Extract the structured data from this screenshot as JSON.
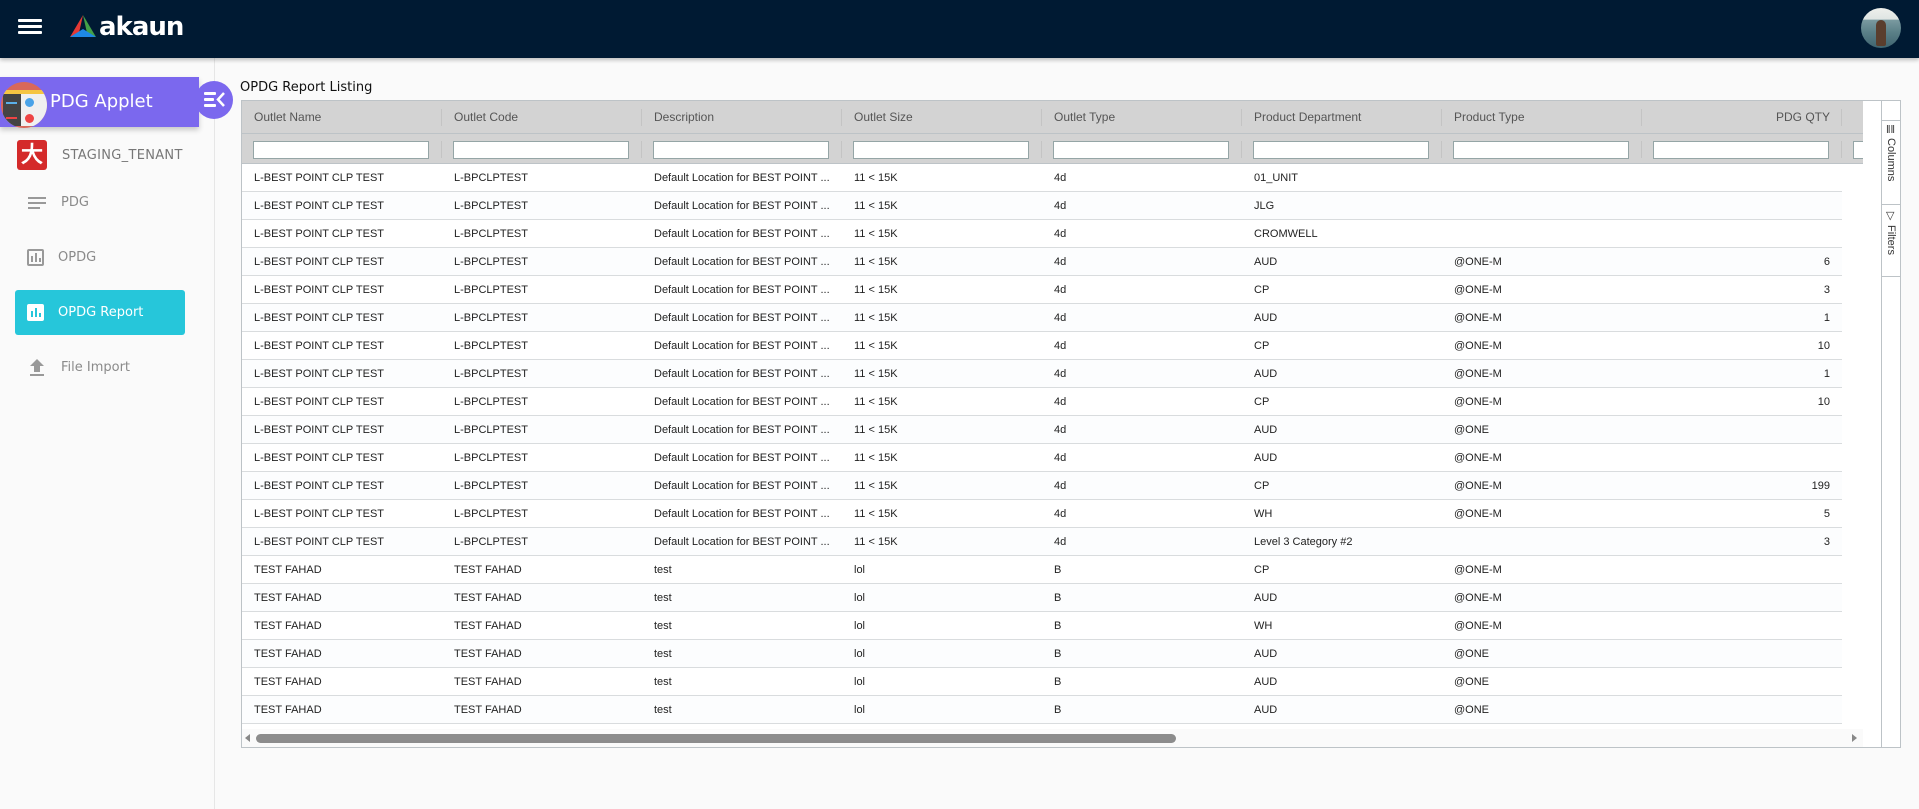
{
  "topbar": {
    "brand": "akaun"
  },
  "sidebar": {
    "applet_title": "PDG Applet",
    "tenant": "STAGING_TENANT",
    "tenant_logo_glyph": "大",
    "items": [
      {
        "label": "PDG",
        "icon": "list-icon",
        "active": false
      },
      {
        "label": "OPDG",
        "icon": "bar-chart-icon",
        "active": false
      },
      {
        "label": "OPDG Report",
        "icon": "bar-chart-icon",
        "active": true
      },
      {
        "label": "File Import",
        "icon": "upload-icon",
        "active": false
      }
    ]
  },
  "main": {
    "title": "OPDG Report Listing",
    "side_panel": {
      "columns_label": "Columns",
      "filters_label": "Filters"
    },
    "grid": {
      "columns": [
        "Outlet Name",
        "Outlet Code",
        "Description",
        "Outlet Size",
        "Outlet Type",
        "Product Department",
        "Product Type",
        "PDG QTY"
      ],
      "rows": [
        [
          "L-BEST POINT CLP TEST",
          "L-BPCLPTEST",
          "Default Location for BEST POINT ...",
          "11 < 15K",
          "4d",
          "01_UNIT",
          "",
          ""
        ],
        [
          "L-BEST POINT CLP TEST",
          "L-BPCLPTEST",
          "Default Location for BEST POINT ...",
          "11 < 15K",
          "4d",
          "JLG",
          "",
          ""
        ],
        [
          "L-BEST POINT CLP TEST",
          "L-BPCLPTEST",
          "Default Location for BEST POINT ...",
          "11 < 15K",
          "4d",
          "CROMWELL",
          "",
          ""
        ],
        [
          "L-BEST POINT CLP TEST",
          "L-BPCLPTEST",
          "Default Location for BEST POINT ...",
          "11 < 15K",
          "4d",
          "AUD",
          "@ONE-M",
          "6"
        ],
        [
          "L-BEST POINT CLP TEST",
          "L-BPCLPTEST",
          "Default Location for BEST POINT ...",
          "11 < 15K",
          "4d",
          "CP",
          "@ONE-M",
          "3"
        ],
        [
          "L-BEST POINT CLP TEST",
          "L-BPCLPTEST",
          "Default Location for BEST POINT ...",
          "11 < 15K",
          "4d",
          "AUD",
          "@ONE-M",
          "1"
        ],
        [
          "L-BEST POINT CLP TEST",
          "L-BPCLPTEST",
          "Default Location for BEST POINT ...",
          "11 < 15K",
          "4d",
          "CP",
          "@ONE-M",
          "10"
        ],
        [
          "L-BEST POINT CLP TEST",
          "L-BPCLPTEST",
          "Default Location for BEST POINT ...",
          "11 < 15K",
          "4d",
          "AUD",
          "@ONE-M",
          "1"
        ],
        [
          "L-BEST POINT CLP TEST",
          "L-BPCLPTEST",
          "Default Location for BEST POINT ...",
          "11 < 15K",
          "4d",
          "CP",
          "@ONE-M",
          "10"
        ],
        [
          "L-BEST POINT CLP TEST",
          "L-BPCLPTEST",
          "Default Location for BEST POINT ...",
          "11 < 15K",
          "4d",
          "AUD",
          "@ONE",
          ""
        ],
        [
          "L-BEST POINT CLP TEST",
          "L-BPCLPTEST",
          "Default Location for BEST POINT ...",
          "11 < 15K",
          "4d",
          "AUD",
          "@ONE-M",
          ""
        ],
        [
          "L-BEST POINT CLP TEST",
          "L-BPCLPTEST",
          "Default Location for BEST POINT ...",
          "11 < 15K",
          "4d",
          "CP",
          "@ONE-M",
          "199"
        ],
        [
          "L-BEST POINT CLP TEST",
          "L-BPCLPTEST",
          "Default Location for BEST POINT ...",
          "11 < 15K",
          "4d",
          "WH",
          "@ONE-M",
          "5"
        ],
        [
          "L-BEST POINT CLP TEST",
          "L-BPCLPTEST",
          "Default Location for BEST POINT ...",
          "11 < 15K",
          "4d",
          "Level 3 Category #2",
          "",
          "3"
        ],
        [
          "TEST FAHAD",
          "TEST FAHAD",
          "test",
          "lol",
          "B",
          "CP",
          "@ONE-M",
          ""
        ],
        [
          "TEST FAHAD",
          "TEST FAHAD",
          "test",
          "lol",
          "B",
          "AUD",
          "@ONE-M",
          ""
        ],
        [
          "TEST FAHAD",
          "TEST FAHAD",
          "test",
          "lol",
          "B",
          "WH",
          "@ONE-M",
          ""
        ],
        [
          "TEST FAHAD",
          "TEST FAHAD",
          "test",
          "lol",
          "B",
          "AUD",
          "@ONE",
          ""
        ],
        [
          "TEST FAHAD",
          "TEST FAHAD",
          "test",
          "lol",
          "B",
          "AUD",
          "@ONE",
          ""
        ],
        [
          "TEST FAHAD",
          "TEST FAHAD",
          "test",
          "lol",
          "B",
          "AUD",
          "@ONE",
          ""
        ]
      ]
    }
  },
  "colors": {
    "topbar": "#001a33",
    "applet_accent": "#7b68ee",
    "active_nav": "#26c6da",
    "grid_header": "#d3d3d3"
  }
}
